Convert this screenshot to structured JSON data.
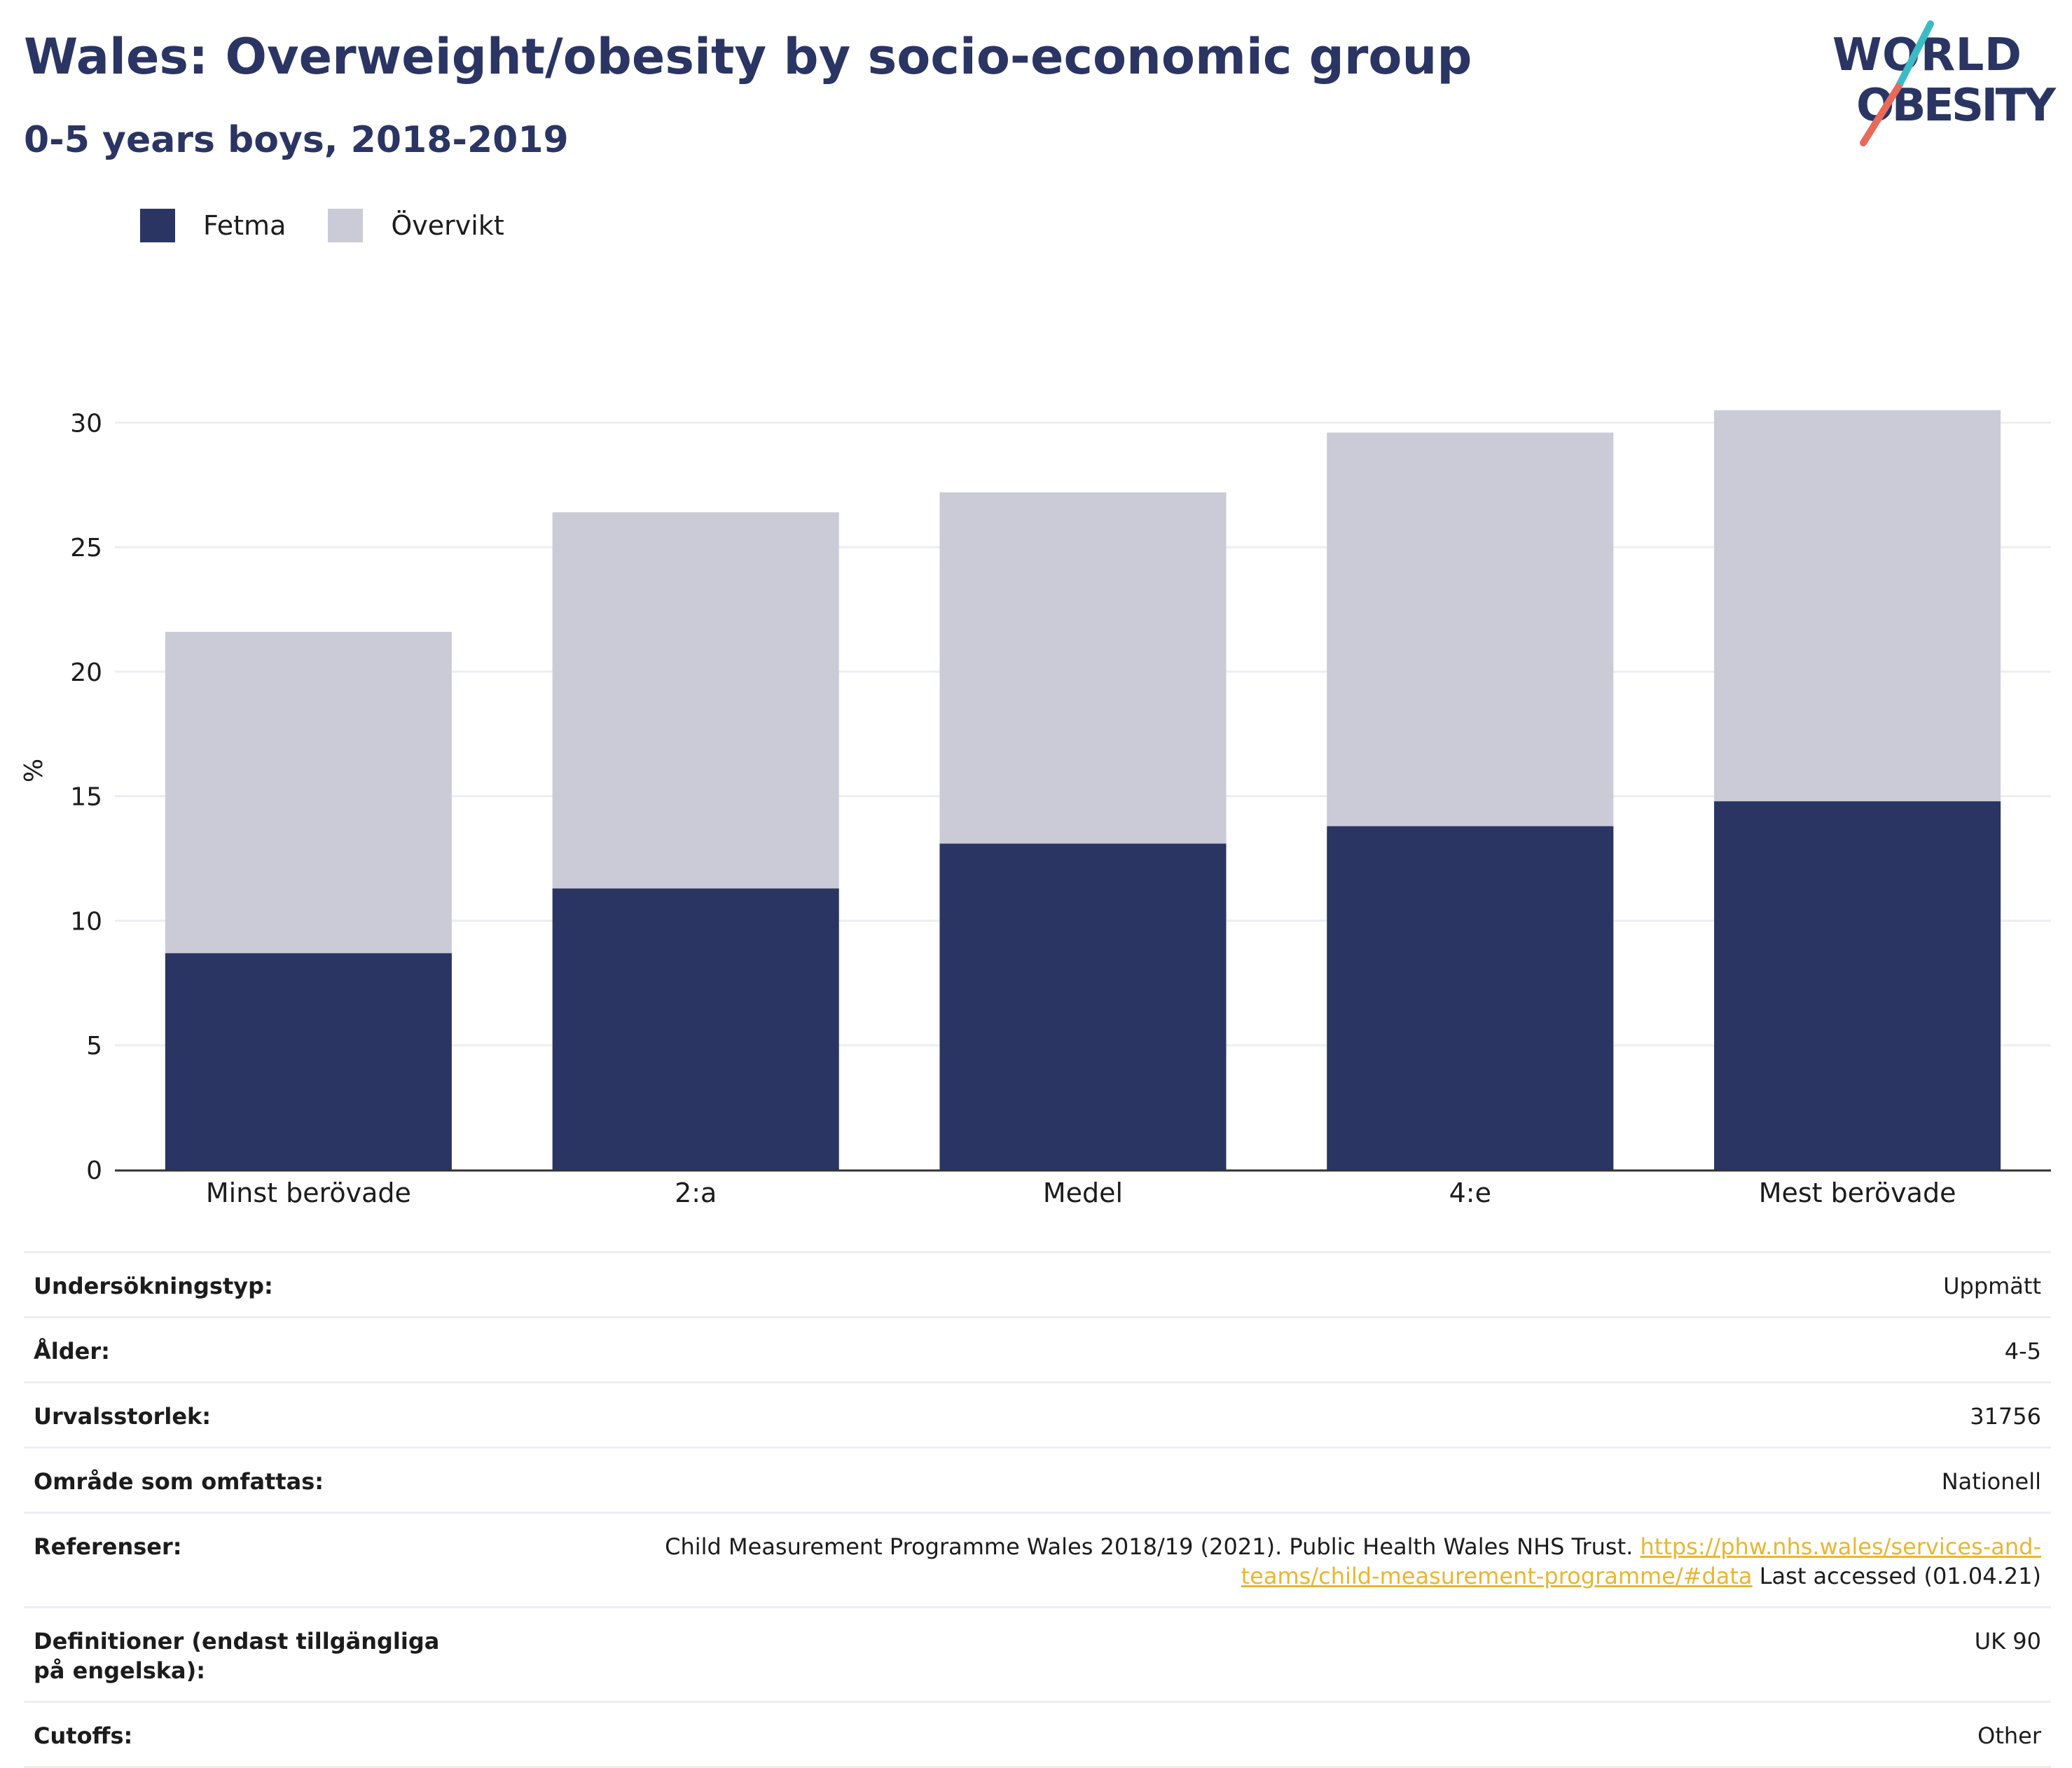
{
  "header": {
    "title": "Wales: Overweight/obesity by socio-economic group",
    "subtitle": "0-5 years boys, 2018-2019"
  },
  "logo": {
    "line1": "WORLD",
    "line2": "OBESITY",
    "colors": {
      "text": "#2a3563",
      "slash_top": "#3bbcc4",
      "slash_bottom": "#e86a5a"
    }
  },
  "legend": [
    {
      "label": "Fetma",
      "color": "#2a3563"
    },
    {
      "label": "Övervikt",
      "color": "#cacbd7"
    }
  ],
  "chart_data": {
    "type": "bar",
    "stacked": true,
    "categories": [
      "Minst berövade",
      "2:a",
      "Medel",
      "4:e",
      "Mest berövade"
    ],
    "series": [
      {
        "name": "Fetma",
        "values": [
          8.7,
          11.3,
          13.1,
          13.8,
          14.8
        ],
        "color": "#2a3563"
      },
      {
        "name": "Övervikt",
        "values": [
          12.9,
          15.1,
          14.1,
          15.8,
          15.7
        ],
        "color": "#cacbd7"
      }
    ],
    "yticks": [
      0,
      5,
      10,
      15,
      20,
      25,
      30
    ],
    "ylim": [
      0,
      31.5
    ],
    "xlabel": "",
    "ylabel": "%",
    "grid": true,
    "legend_position": "top-left"
  },
  "meta": {
    "survey_type": {
      "label": "Undersökningstyp:",
      "value": "Uppmätt"
    },
    "age": {
      "label": "Ålder:",
      "value": "4-5"
    },
    "sample_size": {
      "label": "Urvalsstorlek:",
      "value": "31756"
    },
    "area": {
      "label": "Område som omfattas:",
      "value": "Nationell"
    },
    "references": {
      "label": "Referenser:",
      "text_before": "Child Measurement Programme Wales 2018/19 (2021). Public Health Wales NHS Trust.",
      "link_line1": "https://phw.nhs.wales/services-and-",
      "link_line2": "teams/child-measurement-programme/#data",
      "text_after": "Last accessed (01.04.21)"
    },
    "definitions": {
      "label": "Definitioner (endast tillgängliga på engelska):",
      "value": "UK 90"
    },
    "cutoffs": {
      "label": "Cutoffs:",
      "value": "Other"
    }
  }
}
